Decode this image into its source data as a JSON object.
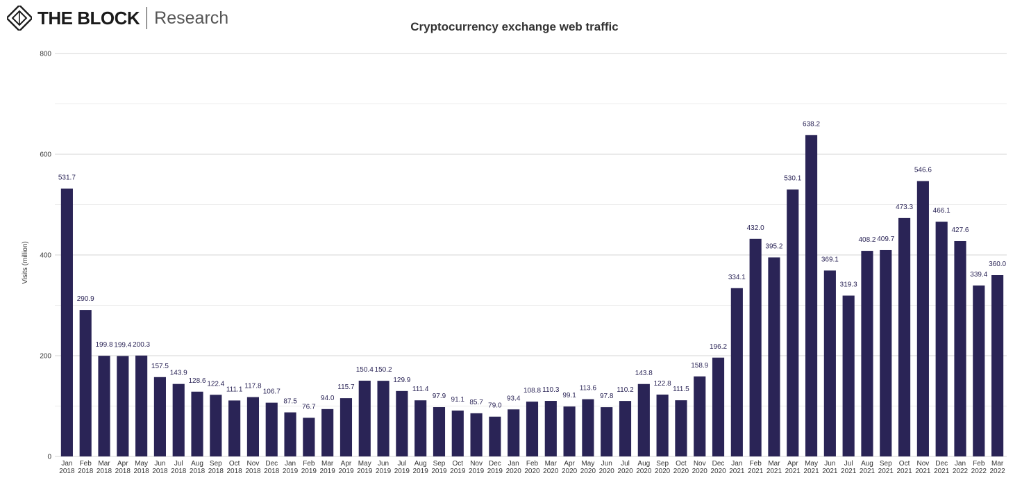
{
  "brand": {
    "name": "THE BLOCK",
    "sub": "Research",
    "logo_icon": "the-block-cube-icon"
  },
  "colors": {
    "bar": "#2a2456",
    "label": "#2a2456",
    "grid_major": "#d4d4d4",
    "grid_minor": "#ececec"
  },
  "chart_data": {
    "type": "bar",
    "title": "Cryptocurrency exchange web traffic",
    "xlabel": "",
    "ylabel": "Visits (million)",
    "ylim": [
      0,
      800
    ],
    "yticks": [
      0,
      200,
      400,
      600,
      800
    ],
    "minor_gridlines": [
      100,
      300,
      500,
      700
    ],
    "legend": "none",
    "categories": [
      [
        "Jan",
        "2018"
      ],
      [
        "Feb",
        "2018"
      ],
      [
        "Mar",
        "2018"
      ],
      [
        "Apr",
        "2018"
      ],
      [
        "May",
        "2018"
      ],
      [
        "Jun",
        "2018"
      ],
      [
        "Jul",
        "2018"
      ],
      [
        "Aug",
        "2018"
      ],
      [
        "Sep",
        "2018"
      ],
      [
        "Oct",
        "2018"
      ],
      [
        "Nov",
        "2018"
      ],
      [
        "Dec",
        "2018"
      ],
      [
        "Jan",
        "2019"
      ],
      [
        "Feb",
        "2019"
      ],
      [
        "Mar",
        "2019"
      ],
      [
        "Apr",
        "2019"
      ],
      [
        "May",
        "2019"
      ],
      [
        "Jun",
        "2019"
      ],
      [
        "Jul",
        "2019"
      ],
      [
        "Aug",
        "2019"
      ],
      [
        "Sep",
        "2019"
      ],
      [
        "Oct",
        "2019"
      ],
      [
        "Nov",
        "2019"
      ],
      [
        "Dec",
        "2019"
      ],
      [
        "Jan",
        "2020"
      ],
      [
        "Feb",
        "2020"
      ],
      [
        "Mar",
        "2020"
      ],
      [
        "Apr",
        "2020"
      ],
      [
        "May",
        "2020"
      ],
      [
        "Jun",
        "2020"
      ],
      [
        "Jul",
        "2020"
      ],
      [
        "Aug",
        "2020"
      ],
      [
        "Sep",
        "2020"
      ],
      [
        "Oct",
        "2020"
      ],
      [
        "Nov",
        "2020"
      ],
      [
        "Dec",
        "2020"
      ],
      [
        "Jan",
        "2021"
      ],
      [
        "Feb",
        "2021"
      ],
      [
        "Mar",
        "2021"
      ],
      [
        "Apr",
        "2021"
      ],
      [
        "May",
        "2021"
      ],
      [
        "Jun",
        "2021"
      ],
      [
        "Jul",
        "2021"
      ],
      [
        "Aug",
        "2021"
      ],
      [
        "Sep",
        "2021"
      ],
      [
        "Oct",
        "2021"
      ],
      [
        "Nov",
        "2021"
      ],
      [
        "Dec",
        "2021"
      ],
      [
        "Jan",
        "2022"
      ],
      [
        "Feb",
        "2022"
      ],
      [
        "Mar",
        "2022"
      ]
    ],
    "series": [
      {
        "name": "Visits (million)",
        "values": [
          531.7,
          290.9,
          199.8,
          199.4,
          200.3,
          157.5,
          143.9,
          128.6,
          122.4,
          111.1,
          117.8,
          106.7,
          87.5,
          76.7,
          94.0,
          115.7,
          150.4,
          150.2,
          129.9,
          111.4,
          97.9,
          91.1,
          85.7,
          79.0,
          93.4,
          108.8,
          110.3,
          99.1,
          113.6,
          97.8,
          110.2,
          143.8,
          122.8,
          111.5,
          158.9,
          196.2,
          334.1,
          432.0,
          395.2,
          530.1,
          638.2,
          369.1,
          319.3,
          408.2,
          409.7,
          473.3,
          546.6,
          466.1,
          427.6,
          339.4,
          360.0
        ],
        "labels": [
          "531.7",
          "290.9",
          "199.8",
          "199.4",
          "200.3",
          "157.5",
          "143.9",
          "128.6",
          "122.4",
          "111.1",
          "117.8",
          "106.7",
          "87.5",
          "76.7",
          "94.0",
          "115.7",
          "150.4",
          "150.2",
          "129.9",
          "111.4",
          "97.9",
          "91.1",
          "85.7",
          "79.0",
          "93.4",
          "108.8",
          "110.3",
          "99.1",
          "113.6",
          "97.8",
          "110.2",
          "143.8",
          "122.8",
          "111.5",
          "158.9",
          "196.2",
          "334.1",
          "432.0",
          "395.2",
          "530.1",
          "638.2",
          "369.1",
          "319.3",
          "408.2",
          "409.7",
          "473.3",
          "546.6",
          "466.1",
          "427.6",
          "339.4",
          "360.0"
        ]
      }
    ]
  }
}
